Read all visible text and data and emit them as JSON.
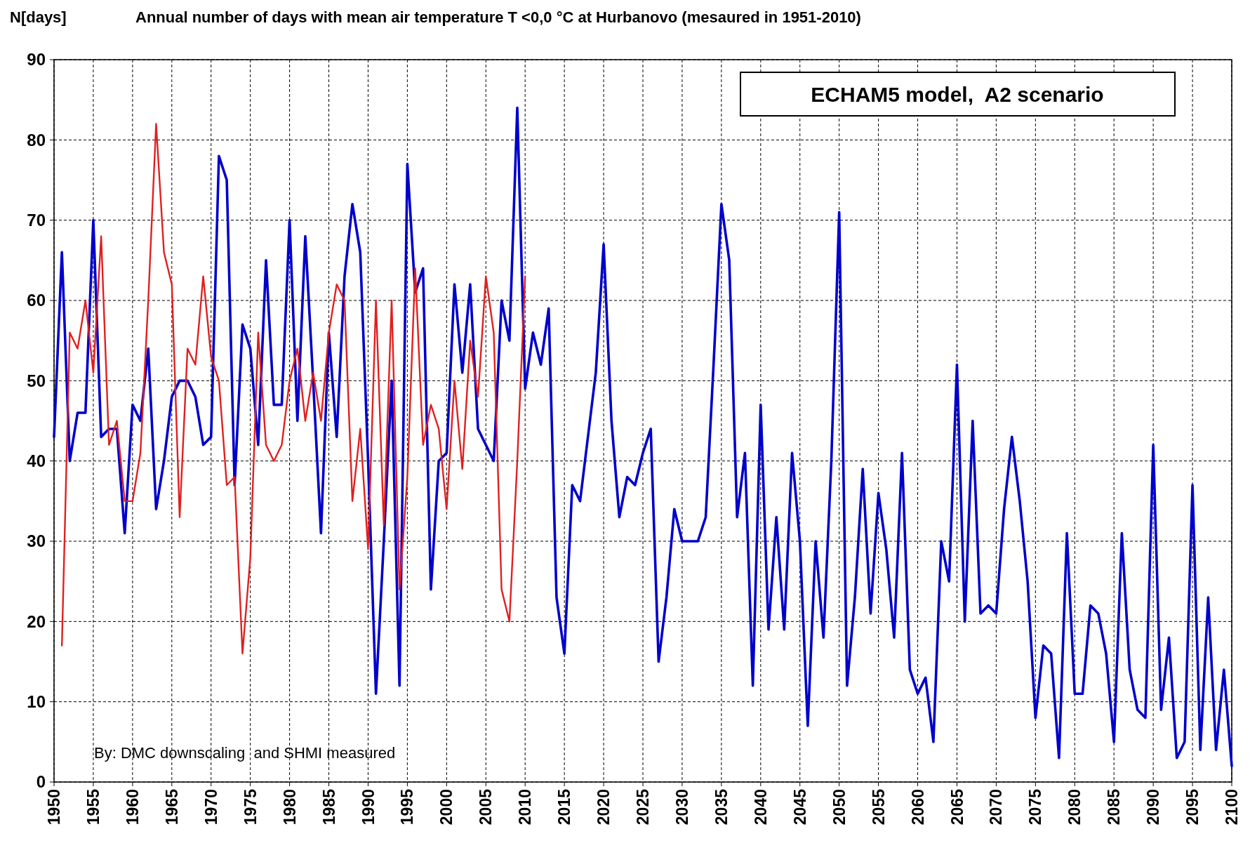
{
  "chart_data": {
    "type": "line",
    "title": "Annual number of days with mean air temperature T <0,0 °C at Hurbanovo (mesaured in 1951-2010)",
    "ylabel": "N[days]",
    "annotations": [
      "ECHAM5 model,  A2 scenario",
      "By: DMC downscaling  and SHMI measured"
    ],
    "series": [
      {
        "color": "#0000cc",
        "x": [
          1950,
          1951,
          1952,
          1953,
          1954,
          1955,
          1956,
          1957,
          1958,
          1959,
          1960,
          1961,
          1962,
          1963,
          1964,
          1965,
          1966,
          1967,
          1968,
          1969,
          1970,
          1971,
          1972,
          1973,
          1974,
          1975,
          1976,
          1977,
          1978,
          1979,
          1980,
          1981,
          1982,
          1983,
          1984,
          1985,
          1986,
          1987,
          1988,
          1989,
          1990,
          1991,
          1992,
          1993,
          1994,
          1995,
          1996,
          1997,
          1998,
          1999,
          2000,
          2001,
          2002,
          2003,
          2004,
          2005,
          2006,
          2007,
          2008,
          2009,
          2010,
          2011,
          2012,
          2013,
          2014,
          2015,
          2016,
          2017,
          2018,
          2019,
          2020,
          2021,
          2022,
          2023,
          2024,
          2025,
          2026,
          2027,
          2028,
          2029,
          2030,
          2031,
          2032,
          2033,
          2034,
          2035,
          2036,
          2037,
          2038,
          2039,
          2040,
          2041,
          2042,
          2043,
          2044,
          2045,
          2046,
          2047,
          2048,
          2049,
          2050,
          2051,
          2052,
          2053,
          2054,
          2055,
          2056,
          2057,
          2058,
          2059,
          2060,
          2061,
          2062,
          2063,
          2064,
          2065,
          2066,
          2067,
          2068,
          2069,
          2070,
          2071,
          2072,
          2073,
          2074,
          2075,
          2076,
          2077,
          2078,
          2079,
          2080,
          2081,
          2082,
          2083,
          2084,
          2085,
          2086,
          2087,
          2088,
          2089,
          2090,
          2091,
          2092,
          2093,
          2094,
          2095,
          2096,
          2097,
          2098,
          2099,
          2100
        ],
        "values": [
          43,
          66,
          40,
          46,
          46,
          70,
          43,
          44,
          44,
          31,
          47,
          45,
          54,
          34,
          40,
          48,
          50,
          50,
          48,
          42,
          43,
          78,
          75,
          37,
          57,
          54,
          42,
          65,
          47,
          47,
          70,
          45,
          68,
          50,
          31,
          56,
          43,
          63,
          72,
          66,
          40,
          11,
          30,
          50,
          12,
          77,
          61,
          64,
          24,
          40,
          41,
          62,
          51,
          62,
          44,
          42,
          40,
          60,
          55,
          84,
          49,
          56,
          52,
          59,
          23,
          16,
          37,
          35,
          43,
          51,
          67,
          45,
          33,
          38,
          37,
          41,
          44,
          15,
          23,
          34,
          30,
          30,
          30,
          33,
          52,
          72,
          65,
          33,
          41,
          12,
          47,
          19,
          33,
          19,
          41,
          30,
          7,
          30,
          18,
          40,
          71,
          12,
          23,
          39,
          21,
          36,
          29,
          18,
          41,
          14,
          11,
          13,
          5,
          30,
          25,
          52,
          20,
          45,
          21,
          22,
          21,
          34,
          43,
          35,
          25,
          8,
          17,
          16,
          3,
          31,
          11,
          11,
          22,
          21,
          16,
          5,
          31,
          14,
          9,
          8,
          42,
          9,
          18,
          3,
          5,
          37,
          4,
          23,
          4,
          14,
          2
        ]
      },
      {
        "color": "#e02020",
        "x": [
          1951,
          1952,
          1953,
          1954,
          1955,
          1956,
          1957,
          1958,
          1959,
          1960,
          1961,
          1962,
          1963,
          1964,
          1965,
          1966,
          1967,
          1968,
          1969,
          1970,
          1971,
          1972,
          1973,
          1974,
          1975,
          1976,
          1977,
          1978,
          1979,
          1980,
          1981,
          1982,
          1983,
          1984,
          1985,
          1986,
          1987,
          1988,
          1989,
          1990,
          1991,
          1992,
          1993,
          1994,
          1995,
          1996,
          1997,
          1998,
          1999,
          2000,
          2001,
          2002,
          2003,
          2004,
          2005,
          2006,
          2007,
          2008,
          2009,
          2010
        ],
        "values": [
          17,
          56,
          54,
          60,
          51,
          68,
          42,
          45,
          35,
          35,
          41,
          60,
          82,
          66,
          62,
          33,
          54,
          52,
          63,
          53,
          50,
          37,
          38,
          16,
          28,
          56,
          42,
          40,
          42,
          50,
          54,
          45,
          51,
          45,
          56,
          62,
          60,
          35,
          44,
          29,
          60,
          32,
          60,
          24,
          38,
          64,
          42,
          47,
          44,
          34,
          50,
          39,
          55,
          48,
          63,
          56,
          24,
          20,
          40,
          63
        ]
      }
    ],
    "xlim": [
      1950,
      2100
    ],
    "xticks": [
      1950,
      1955,
      1960,
      1965,
      1970,
      1975,
      1980,
      1985,
      1990,
      1995,
      2000,
      2005,
      2010,
      2015,
      2020,
      2025,
      2030,
      2035,
      2040,
      2045,
      2050,
      2055,
      2060,
      2065,
      2070,
      2075,
      2080,
      2085,
      2090,
      2095,
      2100
    ],
    "ylim": [
      0,
      90
    ],
    "yticks": [
      0,
      10,
      20,
      30,
      40,
      50,
      60,
      70,
      80,
      90
    ],
    "grid": true,
    "marker": "none",
    "line_style": "solid"
  }
}
